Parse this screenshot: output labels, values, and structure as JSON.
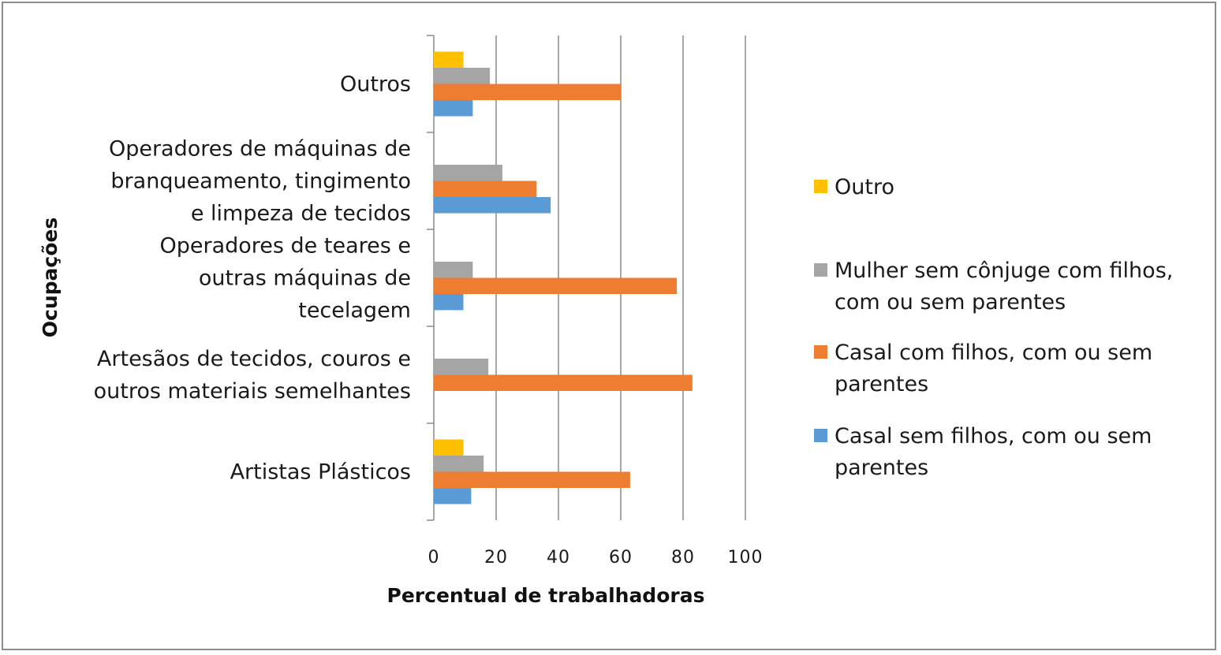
{
  "chart_data": {
    "type": "bar",
    "orientation": "horizontal",
    "xlabel": "Percentual de trabalhadoras",
    "ylabel": "Ocupações",
    "xlim": [
      0,
      100
    ],
    "x_ticks": [
      0,
      20,
      40,
      60,
      80,
      100
    ],
    "grid": "vertical",
    "legend_position": "right",
    "categories": [
      [
        "Artistas Plásticos"
      ],
      [
        "Artesãos de tecidos, couros e",
        "outros materiais semelhantes"
      ],
      [
        "Operadores de teares e",
        "outras máquinas de",
        "tecelagem"
      ],
      [
        "Operadores de máquinas de",
        "branqueamento, tingimento",
        "e limpeza de tecidos"
      ],
      [
        "Outros"
      ]
    ],
    "series": [
      {
        "name": "Casal sem filhos, com ou sem parentes",
        "legend_lines": [
          "Casal sem filhos, com ou sem",
          "parentes"
        ],
        "color": "#5b9bd5",
        "values": [
          12,
          0,
          9.5,
          37.5,
          12.5
        ]
      },
      {
        "name": "Casal com filhos, com ou sem parentes",
        "legend_lines": [
          "Casal com filhos, com ou sem",
          "parentes"
        ],
        "color": "#ed7d31",
        "values": [
          63,
          83,
          78,
          33,
          60
        ]
      },
      {
        "name": "Mulher sem cônjuge com filhos, com ou sem parentes",
        "legend_lines": [
          "Mulher sem cônjuge com filhos,",
          "com ou sem parentes"
        ],
        "color": "#a5a5a5",
        "values": [
          16,
          17.5,
          12.5,
          22,
          18
        ]
      },
      {
        "name": "Outro",
        "legend_lines": [
          "Outro"
        ],
        "color": "#ffc000",
        "values": [
          9.5,
          0,
          0,
          0,
          9.5
        ]
      }
    ]
  }
}
